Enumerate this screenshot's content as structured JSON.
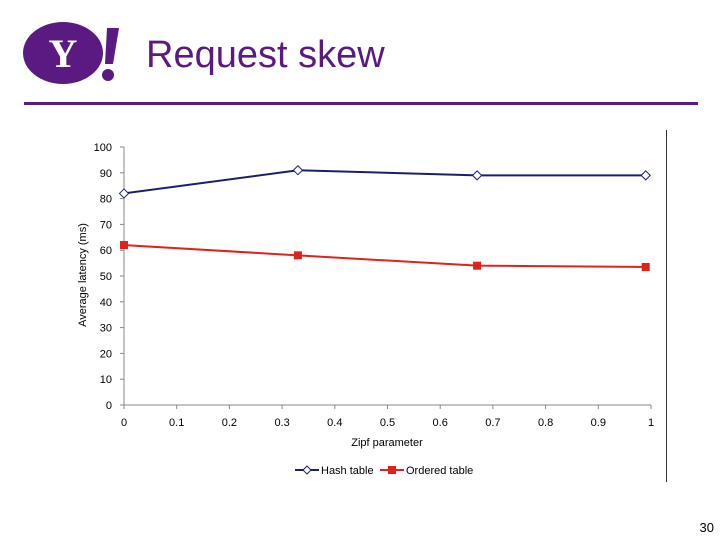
{
  "slide": {
    "title": "Request skew",
    "page_number": "30",
    "logo": {
      "icon": "yahoo-logo-icon",
      "text": "Y!",
      "color": "#5a1a82"
    },
    "accent_color": "#5a1a82"
  },
  "chart_data": {
    "type": "line",
    "title": "",
    "xlabel": "Zipf parameter",
    "ylabel": "Average latency (ms)",
    "xlim": [
      0,
      1
    ],
    "ylim": [
      0,
      100
    ],
    "x_ticks": [
      "0",
      "0.1",
      "0.2",
      "0.3",
      "0.4",
      "0.5",
      "0.6",
      "0.7",
      "0.8",
      "0.9",
      "1"
    ],
    "y_ticks": [
      "0",
      "10",
      "20",
      "30",
      "40",
      "50",
      "60",
      "70",
      "80",
      "90",
      "100"
    ],
    "grid": false,
    "legend_position": "bottom",
    "series": [
      {
        "name": "Hash table",
        "color": "#1a1f6e",
        "marker": "diamond-open",
        "x": [
          0,
          0.33,
          0.67,
          0.99
        ],
        "y": [
          82,
          91,
          89,
          89
        ]
      },
      {
        "name": "Ordered table",
        "color": "#e0221a",
        "marker": "square-filled",
        "x": [
          0,
          0.33,
          0.67,
          0.99
        ],
        "y": [
          62,
          58,
          54,
          53.5
        ]
      }
    ]
  }
}
